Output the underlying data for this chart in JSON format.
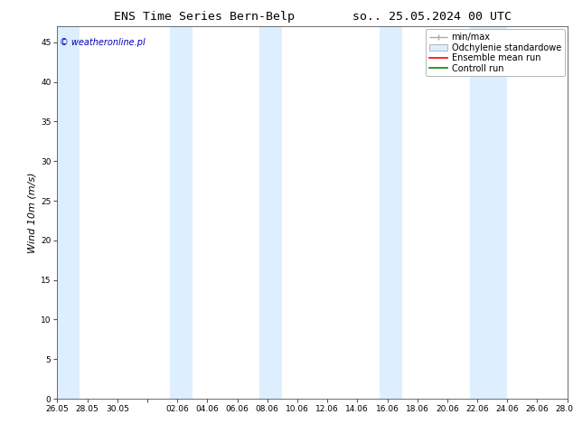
{
  "title_left": "ENS Time Series Bern-Belp",
  "title_right": "so.. 25.05.2024 00 UTC",
  "ylabel": "Wind 10m (m/s)",
  "ylim": [
    0,
    47
  ],
  "yticks": [
    0,
    5,
    10,
    15,
    20,
    25,
    30,
    35,
    40,
    45
  ],
  "background_color": "#ffffff",
  "plot_bg_color": "#ffffff",
  "watermark": "© weatheronline.pl",
  "watermark_color": "#0000bb",
  "legend_items": [
    "min/max",
    "Odchylenie standardowe",
    "Ensemble mean run",
    "Controll run"
  ],
  "legend_colors_line": [
    "#aaaaaa",
    "#bbccdd",
    "#ff0000",
    "#008800"
  ],
  "x_tick_labels": [
    "26.05",
    "28.05",
    "30.05",
    "",
    "02.06",
    "04.06",
    "06.06",
    "08.06",
    "10.06",
    "12.06",
    "14.06",
    "16.06",
    "18.06",
    "20.06",
    "22.06",
    "24.06",
    "26.06",
    "28.06"
  ],
  "x_tick_positions": [
    0,
    2,
    4,
    6,
    8,
    10,
    12,
    14,
    16,
    18,
    20,
    22,
    24,
    26,
    28,
    30,
    32,
    34
  ],
  "shading_bands": [
    [
      0,
      1.5
    ],
    [
      7.5,
      9.0
    ],
    [
      13.5,
      15.0
    ],
    [
      21.5,
      23.0
    ],
    [
      27.5,
      30.0
    ]
  ],
  "shading_color": "#ddeeff",
  "title_fontsize": 9.5,
  "tick_fontsize": 6.5,
  "ylabel_fontsize": 8,
  "legend_fontsize": 7
}
